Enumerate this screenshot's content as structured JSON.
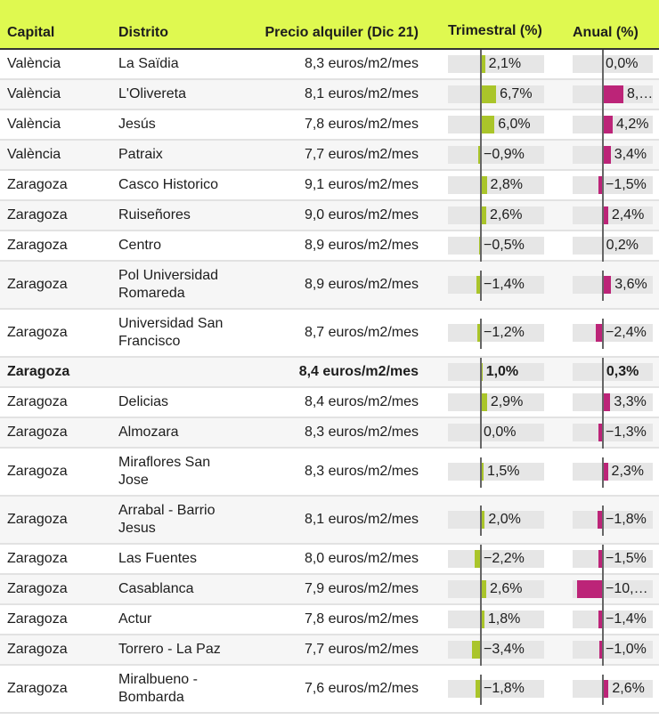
{
  "header": {
    "capital": "Capital",
    "distrito": "Distrito",
    "precio": "Precio alquiler (Dic 21)",
    "trimestral": "Trimestral (%)",
    "anual": "Anual (%)"
  },
  "colors": {
    "header_bg": "#dff950",
    "trimestral_bar": "#aac52a",
    "anual_bar": "#bc2478",
    "bar_bg": "#e6e6e6"
  },
  "chart_data": {
    "type": "table",
    "columns": [
      "Capital",
      "Distrito",
      "Precio alquiler (Dic 21)",
      "Trimestral (%)",
      "Anual (%)"
    ],
    "rows": [
      {
        "capital": "València",
        "distrito": "La Saïdia",
        "precio": "8,3 euros/m2/mes",
        "trim": 2.1,
        "trim_label": "2,1%",
        "anual": 0.0,
        "anual_label": "0,0%"
      },
      {
        "capital": "València",
        "distrito": "L'Olivereta",
        "precio": "8,1 euros/m2/mes",
        "trim": 6.7,
        "trim_label": "6,7%",
        "anual": 8.4,
        "anual_label": "8,…"
      },
      {
        "capital": "València",
        "distrito": "Jesús",
        "precio": "7,8 euros/m2/mes",
        "trim": 6.0,
        "trim_label": "6,0%",
        "anual": 4.2,
        "anual_label": "4,2%"
      },
      {
        "capital": "València",
        "distrito": "Patraix",
        "precio": "7,7 euros/m2/mes",
        "trim": -0.9,
        "trim_label": "−0,9%",
        "anual": 3.4,
        "anual_label": "3,4%"
      },
      {
        "capital": "Zaragoza",
        "distrito": "Casco Historico",
        "precio": "9,1 euros/m2/mes",
        "trim": 2.8,
        "trim_label": "2,8%",
        "anual": -1.5,
        "anual_label": "−1,5%"
      },
      {
        "capital": "Zaragoza",
        "distrito": "Ruiseñores",
        "precio": "9,0 euros/m2/mes",
        "trim": 2.6,
        "trim_label": "2,6%",
        "anual": 2.4,
        "anual_label": "2,4%"
      },
      {
        "capital": "Zaragoza",
        "distrito": "Centro",
        "precio": "8,9 euros/m2/mes",
        "trim": -0.5,
        "trim_label": "−0,5%",
        "anual": 0.2,
        "anual_label": "0,2%"
      },
      {
        "capital": "Zaragoza",
        "distrito": "Pol Universidad Romareda",
        "precio": "8,9 euros/m2/mes",
        "trim": -1.4,
        "trim_label": "−1,4%",
        "anual": 3.6,
        "anual_label": "3,6%"
      },
      {
        "capital": "Zaragoza",
        "distrito": "Universidad San Francisco",
        "precio": "8,7 euros/m2/mes",
        "trim": -1.2,
        "trim_label": "−1,2%",
        "anual": -2.4,
        "anual_label": "−2,4%"
      },
      {
        "capital": "Zaragoza",
        "distrito": "",
        "precio": "8,4 euros/m2/mes",
        "trim": 1.0,
        "trim_label": "1,0%",
        "anual": 0.3,
        "anual_label": "0,3%",
        "bold": true
      },
      {
        "capital": "Zaragoza",
        "distrito": "Delicias",
        "precio": "8,4 euros/m2/mes",
        "trim": 2.9,
        "trim_label": "2,9%",
        "anual": 3.3,
        "anual_label": "3,3%"
      },
      {
        "capital": "Zaragoza",
        "distrito": "Almozara",
        "precio": "8,3 euros/m2/mes",
        "trim": 0.0,
        "trim_label": "0,0%",
        "anual": -1.3,
        "anual_label": "−1,3%"
      },
      {
        "capital": "Zaragoza",
        "distrito": "Miraflores San Jose",
        "precio": "8,3 euros/m2/mes",
        "trim": 1.5,
        "trim_label": "1,5%",
        "anual": 2.3,
        "anual_label": "2,3%"
      },
      {
        "capital": "Zaragoza",
        "distrito": "Arrabal - Barrio Jesus",
        "precio": "8,1 euros/m2/mes",
        "trim": 2.0,
        "trim_label": "2,0%",
        "anual": -1.8,
        "anual_label": "−1,8%"
      },
      {
        "capital": "Zaragoza",
        "distrito": "Las Fuentes",
        "precio": "8,0 euros/m2/mes",
        "trim": -2.2,
        "trim_label": "−2,2%",
        "anual": -1.5,
        "anual_label": "−1,5%"
      },
      {
        "capital": "Zaragoza",
        "distrito": "Casablanca",
        "precio": "7,9 euros/m2/mes",
        "trim": 2.6,
        "trim_label": "2,6%",
        "anual": -10.0,
        "anual_label": "−10,…"
      },
      {
        "capital": "Zaragoza",
        "distrito": "Actur",
        "precio": "7,8 euros/m2/mes",
        "trim": 1.8,
        "trim_label": "1,8%",
        "anual": -1.4,
        "anual_label": "−1,4%"
      },
      {
        "capital": "Zaragoza",
        "distrito": "Torrero - La Paz",
        "precio": "7,7 euros/m2/mes",
        "trim": -3.4,
        "trim_label": "−3,4%",
        "anual": -1.0,
        "anual_label": "−1,0%"
      },
      {
        "capital": "Zaragoza",
        "distrito": "Miralbueno - Bombarda",
        "precio": "7,6 euros/m2/mes",
        "trim": -1.8,
        "trim_label": "−1,8%",
        "anual": 2.6,
        "anual_label": "2,6%"
      }
    ]
  }
}
